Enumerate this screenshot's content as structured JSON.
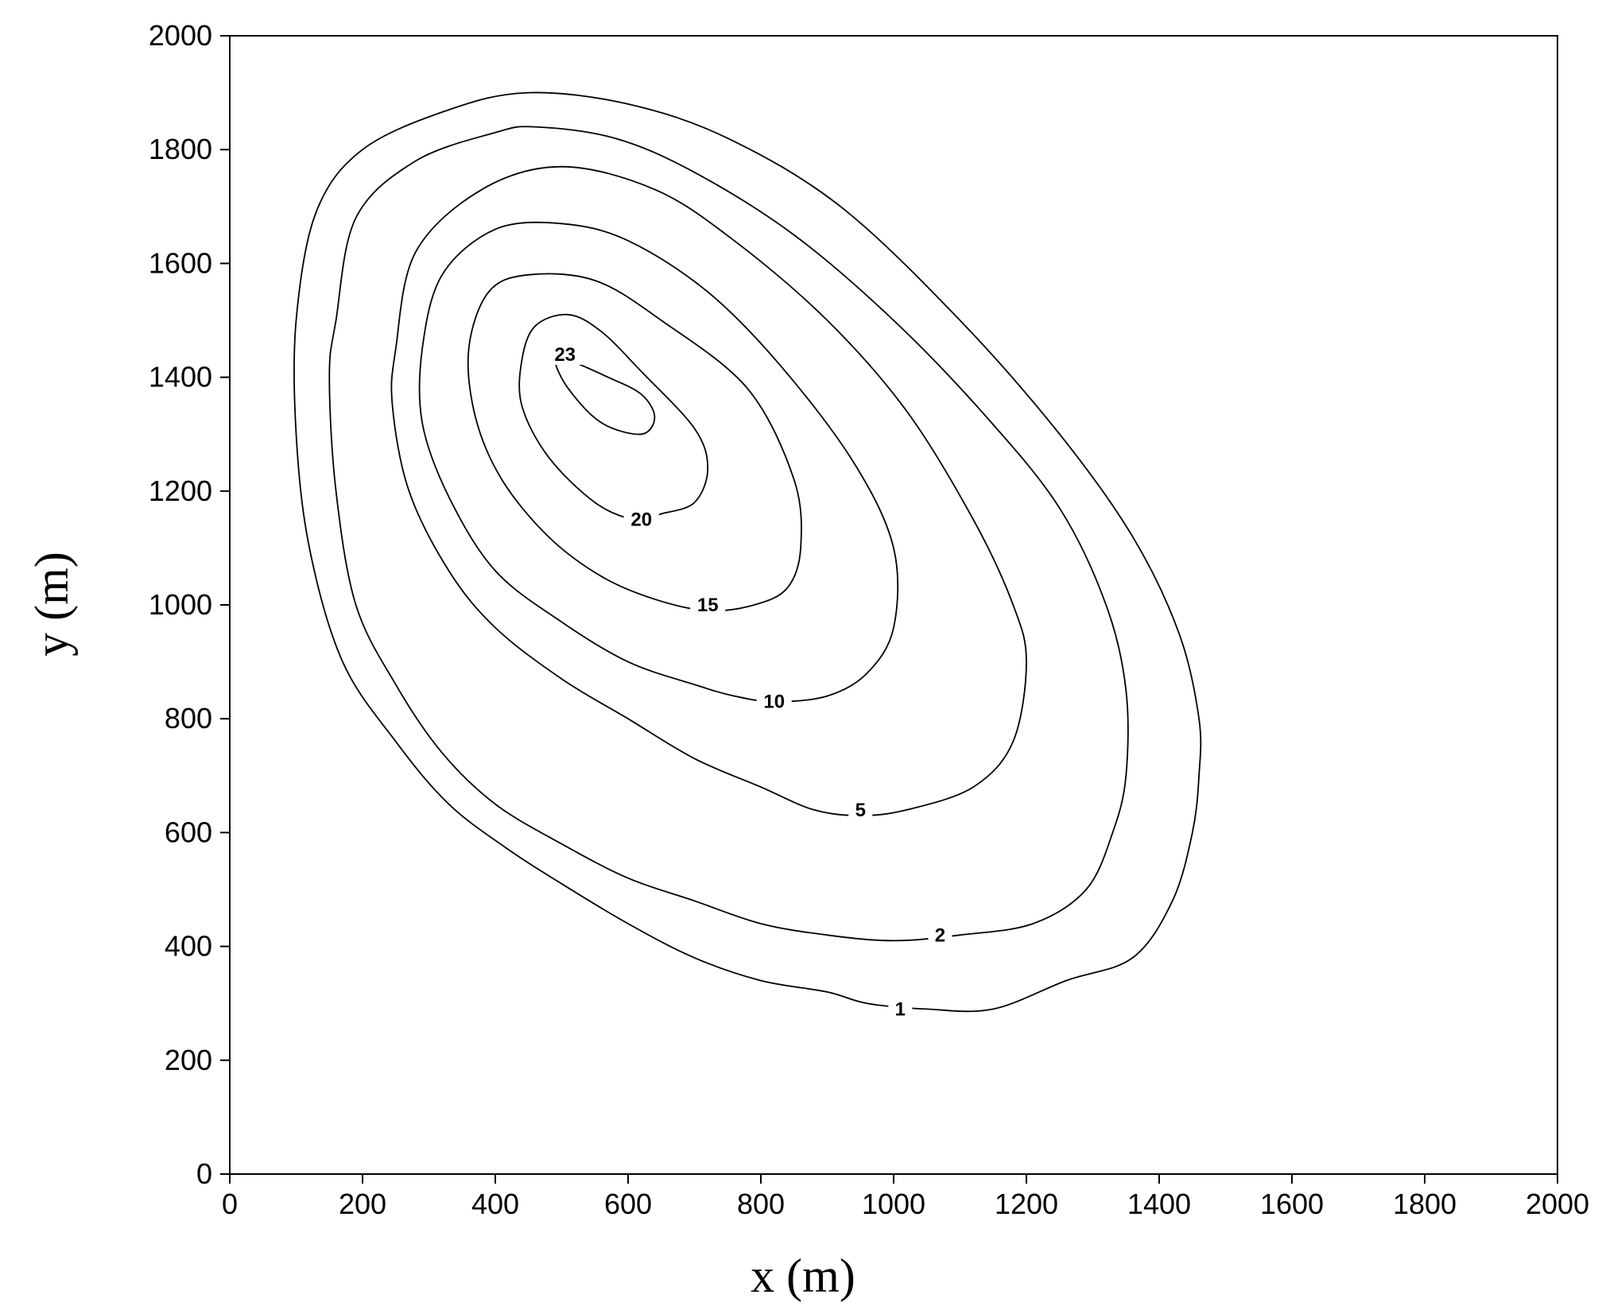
{
  "chart_data": {
    "type": "contour",
    "xlabel": "x (m)",
    "ylabel": "y (m)",
    "xlim": [
      0,
      2000
    ],
    "ylim": [
      0,
      2000
    ],
    "x_ticks": [
      "0",
      "200",
      "400",
      "600",
      "800",
      "1000",
      "1200",
      "1400",
      "1600",
      "1800",
      "2000"
    ],
    "y_ticks": [
      "0",
      "200",
      "400",
      "600",
      "800",
      "1000",
      "1200",
      "1400",
      "1600",
      "1800",
      "2000"
    ],
    "grid": false,
    "contours": [
      {
        "level": "1",
        "points": [
          [
            100,
            1500
          ],
          [
            130,
            1690
          ],
          [
            200,
            1800
          ],
          [
            330,
            1870
          ],
          [
            450,
            1900
          ],
          [
            600,
            1880
          ],
          [
            750,
            1820
          ],
          [
            920,
            1700
          ],
          [
            1100,
            1500
          ],
          [
            1250,
            1300
          ],
          [
            1360,
            1120
          ],
          [
            1430,
            950
          ],
          [
            1460,
            800
          ],
          [
            1460,
            700
          ],
          [
            1450,
            600
          ],
          [
            1420,
            480
          ],
          [
            1360,
            380
          ],
          [
            1260,
            340
          ],
          [
            1150,
            290
          ],
          [
            1050,
            290
          ],
          [
            960,
            300
          ],
          [
            900,
            320
          ],
          [
            800,
            340
          ],
          [
            700,
            380
          ],
          [
            600,
            440
          ],
          [
            500,
            510
          ],
          [
            420,
            570
          ],
          [
            330,
            650
          ],
          [
            250,
            760
          ],
          [
            170,
            900
          ],
          [
            120,
            1100
          ],
          [
            100,
            1300
          ],
          [
            100,
            1500
          ]
        ],
        "label_at": [
          1010,
          290
        ]
      },
      {
        "level": "2",
        "points": [
          [
            160,
            1500
          ],
          [
            190,
            1680
          ],
          [
            280,
            1780
          ],
          [
            400,
            1830
          ],
          [
            460,
            1840
          ],
          [
            580,
            1820
          ],
          [
            700,
            1760
          ],
          [
            850,
            1650
          ],
          [
            1000,
            1500
          ],
          [
            1140,
            1330
          ],
          [
            1250,
            1170
          ],
          [
            1320,
            1000
          ],
          [
            1350,
            850
          ],
          [
            1350,
            700
          ],
          [
            1330,
            600
          ],
          [
            1290,
            500
          ],
          [
            1210,
            440
          ],
          [
            1100,
            420
          ],
          [
            1000,
            410
          ],
          [
            900,
            420
          ],
          [
            800,
            440
          ],
          [
            700,
            480
          ],
          [
            600,
            520
          ],
          [
            500,
            580
          ],
          [
            400,
            650
          ],
          [
            320,
            740
          ],
          [
            250,
            860
          ],
          [
            190,
            1000
          ],
          [
            160,
            1200
          ],
          [
            150,
            1400
          ],
          [
            160,
            1500
          ]
        ],
        "label_at": [
          1070,
          420
        ]
      },
      {
        "level": "5",
        "points": [
          [
            250,
            1450
          ],
          [
            280,
            1620
          ],
          [
            380,
            1730
          ],
          [
            500,
            1770
          ],
          [
            640,
            1730
          ],
          [
            760,
            1640
          ],
          [
            900,
            1500
          ],
          [
            1020,
            1340
          ],
          [
            1120,
            1150
          ],
          [
            1180,
            1000
          ],
          [
            1200,
            900
          ],
          [
            1180,
            760
          ],
          [
            1120,
            680
          ],
          [
            1020,
            640
          ],
          [
            950,
            630
          ],
          [
            880,
            640
          ],
          [
            800,
            680
          ],
          [
            700,
            730
          ],
          [
            600,
            800
          ],
          [
            500,
            870
          ],
          [
            400,
            960
          ],
          [
            330,
            1060
          ],
          [
            270,
            1200
          ],
          [
            245,
            1350
          ],
          [
            250,
            1450
          ]
        ],
        "label_at": [
          950,
          640
        ]
      },
      {
        "level": "10",
        "points": [
          [
            290,
            1450
          ],
          [
            320,
            1580
          ],
          [
            400,
            1660
          ],
          [
            500,
            1670
          ],
          [
            600,
            1640
          ],
          [
            720,
            1550
          ],
          [
            830,
            1420
          ],
          [
            940,
            1250
          ],
          [
            1000,
            1100
          ],
          [
            1000,
            960
          ],
          [
            960,
            880
          ],
          [
            900,
            840
          ],
          [
            820,
            830
          ],
          [
            760,
            840
          ],
          [
            700,
            860
          ],
          [
            600,
            900
          ],
          [
            500,
            970
          ],
          [
            400,
            1060
          ],
          [
            330,
            1190
          ],
          [
            290,
            1320
          ],
          [
            290,
            1450
          ]
        ],
        "label_at": [
          820,
          830
        ]
      },
      {
        "level": "15",
        "points": [
          [
            360,
            1450
          ],
          [
            390,
            1550
          ],
          [
            450,
            1580
          ],
          [
            550,
            1570
          ],
          [
            650,
            1500
          ],
          [
            780,
            1380
          ],
          [
            850,
            1220
          ],
          [
            860,
            1100
          ],
          [
            840,
            1030
          ],
          [
            790,
            1000
          ],
          [
            720,
            990
          ],
          [
            640,
            1010
          ],
          [
            560,
            1050
          ],
          [
            480,
            1120
          ],
          [
            410,
            1220
          ],
          [
            370,
            1330
          ],
          [
            360,
            1450
          ]
        ],
        "label_at": [
          720,
          1000
        ]
      },
      {
        "level": "20",
        "points": [
          [
            440,
            1430
          ],
          [
            460,
            1490
          ],
          [
            510,
            1510
          ],
          [
            560,
            1480
          ],
          [
            620,
            1410
          ],
          [
            700,
            1310
          ],
          [
            720,
            1240
          ],
          [
            700,
            1180
          ],
          [
            650,
            1160
          ],
          [
            610,
            1150
          ],
          [
            550,
            1180
          ],
          [
            480,
            1260
          ],
          [
            440,
            1350
          ],
          [
            440,
            1430
          ]
        ],
        "label_at": [
          620,
          1150
        ]
      },
      {
        "level": "23",
        "points": [
          [
            490,
            1430
          ],
          [
            510,
            1380
          ],
          [
            560,
            1320
          ],
          [
            620,
            1300
          ],
          [
            640,
            1330
          ],
          [
            620,
            1370
          ],
          [
            570,
            1400
          ],
          [
            510,
            1430
          ],
          [
            490,
            1430
          ]
        ],
        "label_at": [
          505,
          1440
        ]
      }
    ]
  }
}
